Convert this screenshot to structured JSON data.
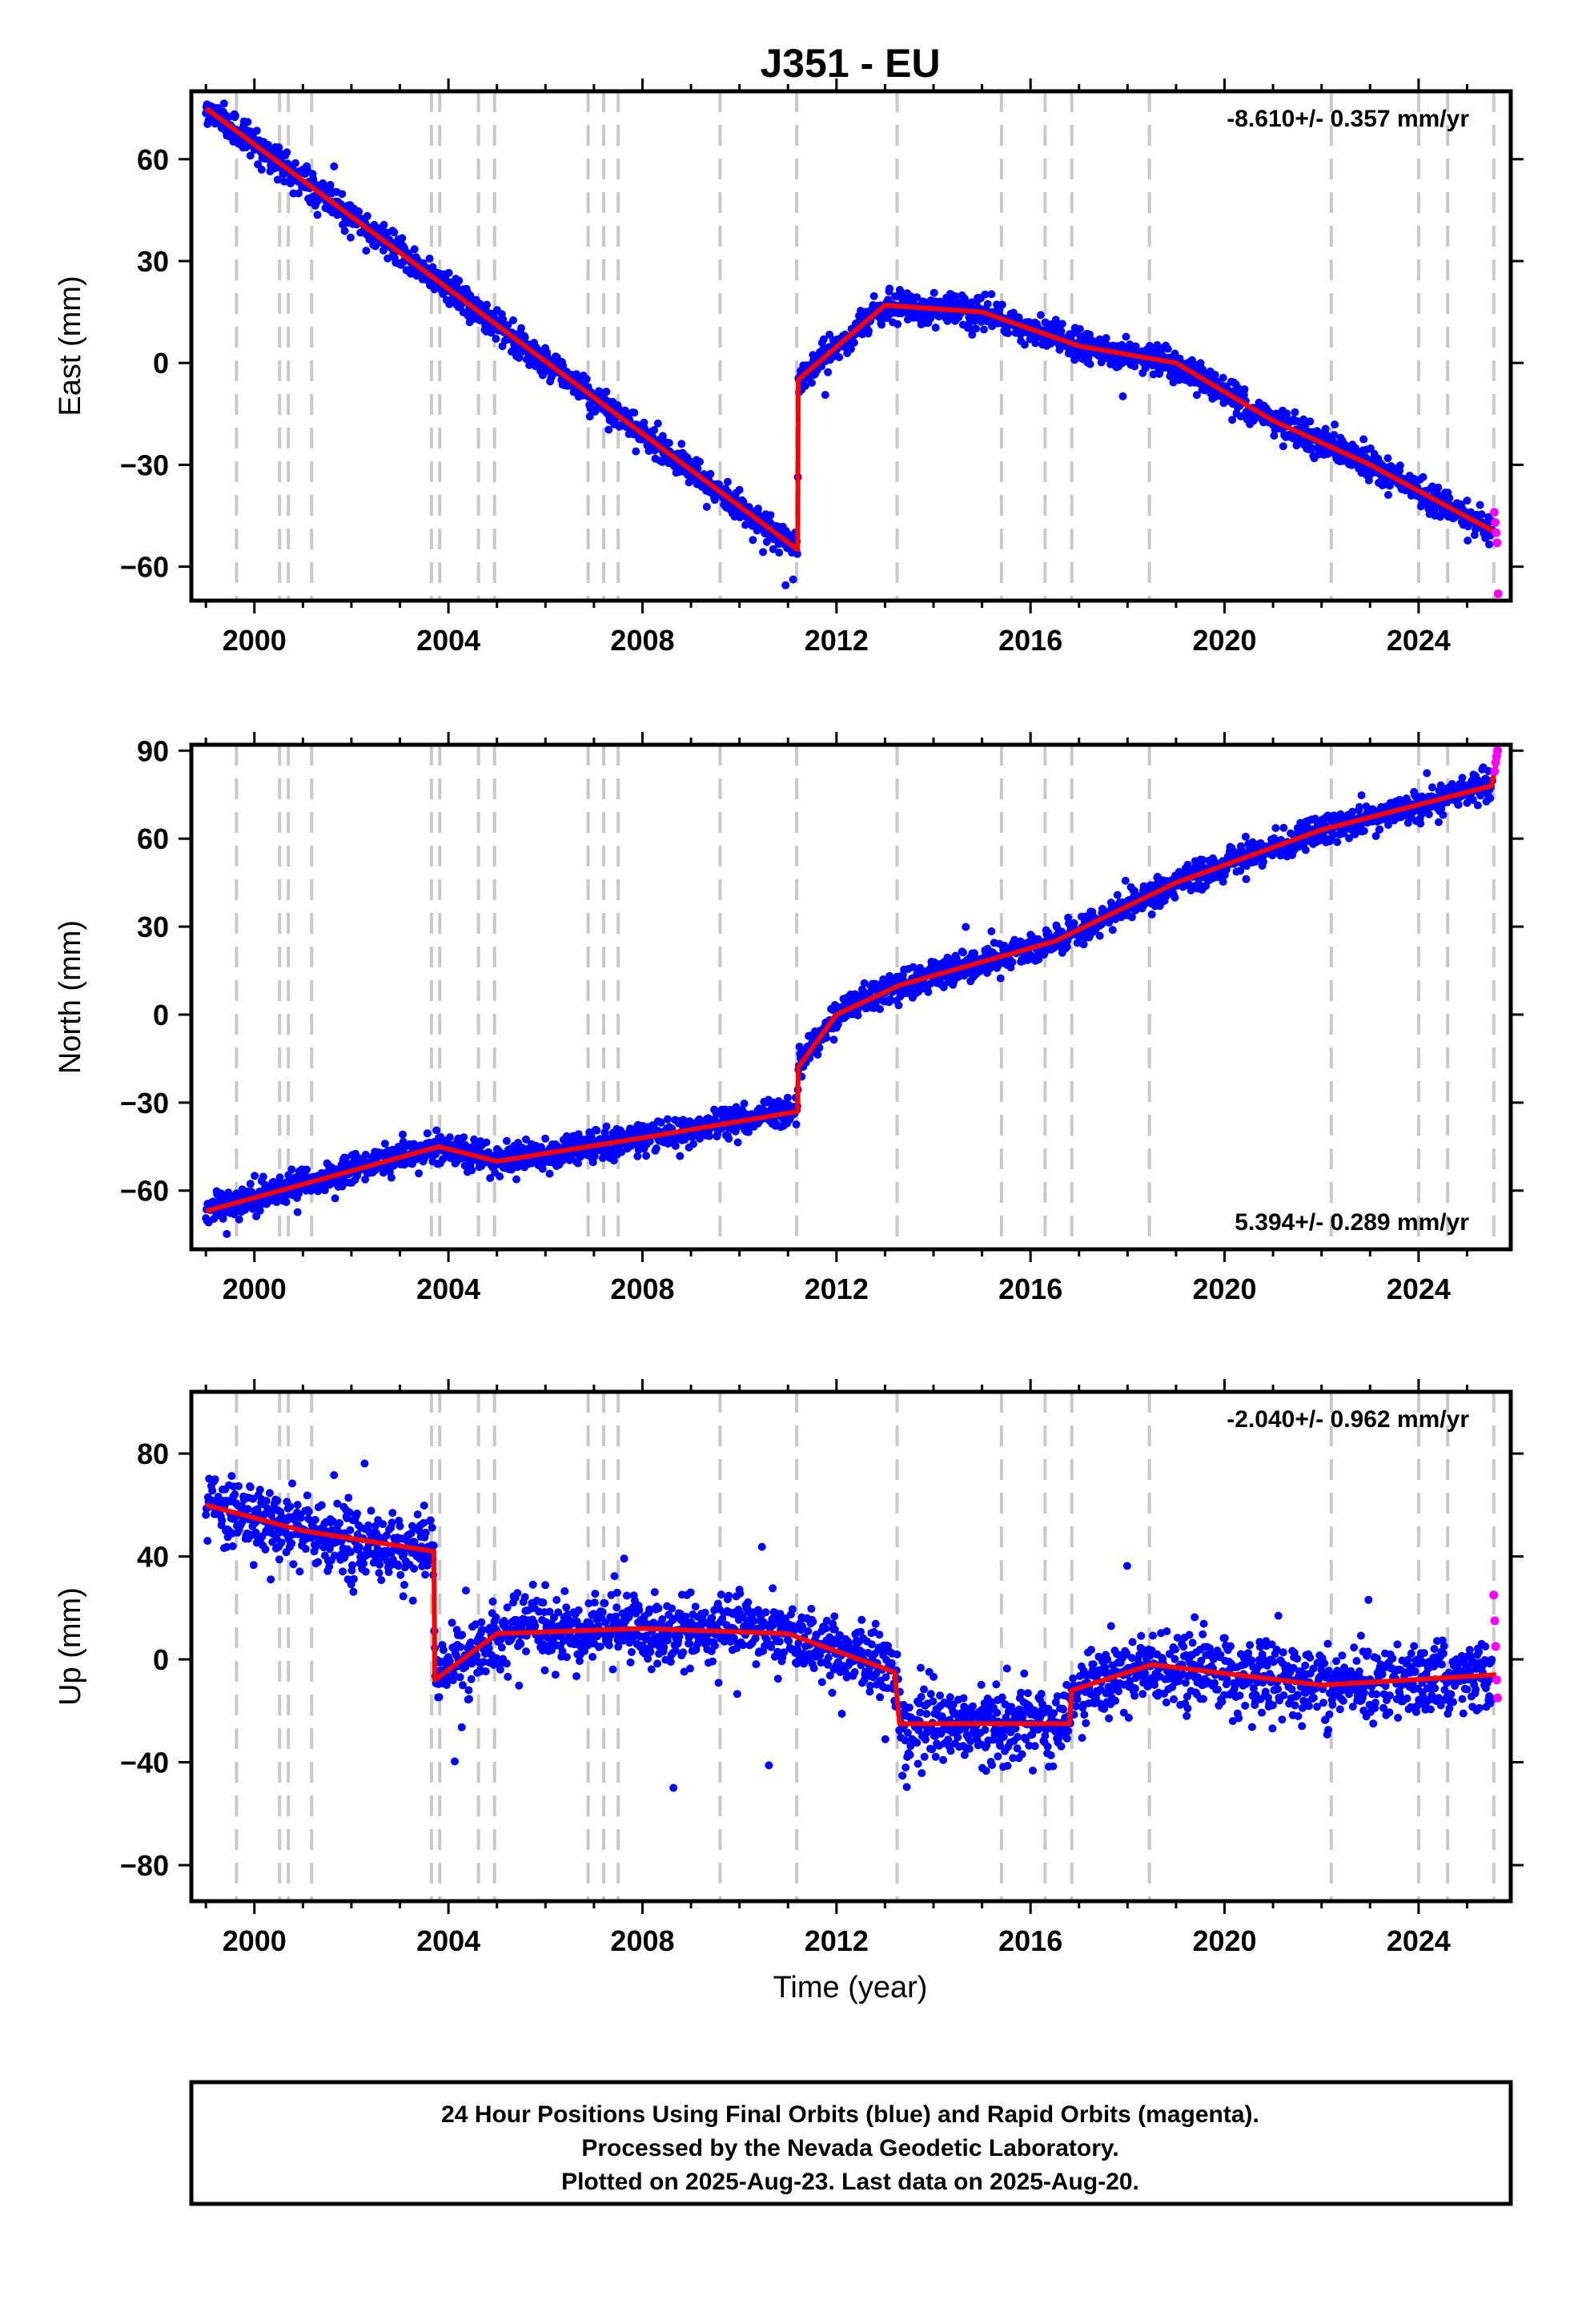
{
  "figure": {
    "title": "J351 - EU",
    "x_axis_label": "Time (year)",
    "footer": [
      "24 Hour Positions Using Final Orbits (blue) and Rapid Orbits (magenta).",
      "Processed by the Nevada Geodetic Laboratory.",
      "Plotted on 2025-Aug-23. Last data on 2025-Aug-20."
    ]
  },
  "colors": {
    "final_orbits": "#0000ff",
    "rapid_orbits": "#ff00ff",
    "model_line": "#ff0000",
    "event_lines": "#c8c8c8"
  },
  "chart_data": [
    {
      "type": "scatter",
      "name": "east",
      "ylabel": "East (mm)",
      "rate_label": "-8.610+/- 0.357 mm/yr",
      "rate_position": "top-right",
      "xlim": [
        1998.7,
        2025.9
      ],
      "ylim": [
        -70,
        80
      ],
      "x_ticks": [
        2000,
        2004,
        2008,
        2012,
        2016,
        2020,
        2024
      ],
      "y_ticks": [
        -60,
        -30,
        0,
        30,
        60
      ],
      "trend": [
        [
          1999.0,
          75
        ],
        [
          2003.7,
          25
        ],
        [
          2011.2,
          -55
        ],
        [
          2011.21,
          -5
        ],
        [
          2013.0,
          17
        ],
        [
          2015.0,
          15
        ],
        [
          2017.0,
          5
        ],
        [
          2019.0,
          0
        ],
        [
          2021.0,
          -17
        ],
        [
          2023.0,
          -30
        ],
        [
          2025.6,
          -50
        ]
      ],
      "noise_sd": 2.2,
      "rapid_orbits": [
        [
          2025.56,
          -44
        ],
        [
          2025.58,
          -47
        ],
        [
          2025.6,
          -50
        ],
        [
          2025.62,
          -53
        ],
        [
          2025.64,
          -68
        ]
      ]
    },
    {
      "type": "scatter",
      "name": "north",
      "ylabel": "North (mm)",
      "rate_label": "5.394+/- 0.289 mm/yr",
      "rate_position": "bottom-right",
      "xlim": [
        1998.7,
        2025.9
      ],
      "ylim": [
        -80,
        92
      ],
      "x_ticks": [
        2000,
        2004,
        2008,
        2012,
        2016,
        2020,
        2024
      ],
      "y_ticks": [
        -60,
        -30,
        0,
        30,
        60,
        90
      ],
      "trend": [
        [
          1999.0,
          -67
        ],
        [
          2003.8,
          -45
        ],
        [
          2005.0,
          -50
        ],
        [
          2008.0,
          -42
        ],
        [
          2011.2,
          -33
        ],
        [
          2011.21,
          -18
        ],
        [
          2012.0,
          0
        ],
        [
          2013.3,
          10
        ],
        [
          2016.5,
          25
        ],
        [
          2019.0,
          45
        ],
        [
          2022.0,
          63
        ],
        [
          2025.5,
          78
        ],
        [
          2025.62,
          87
        ]
      ],
      "noise_sd": 2.5,
      "rapid_orbits": [
        [
          2025.57,
          83
        ],
        [
          2025.59,
          86
        ],
        [
          2025.61,
          88
        ],
        [
          2025.63,
          90
        ]
      ]
    },
    {
      "type": "scatter",
      "name": "up",
      "ylabel": "Up (mm)",
      "rate_label": "-2.040+/- 0.962 mm/yr",
      "rate_position": "top-right",
      "xlim": [
        1998.7,
        2025.9
      ],
      "ylim": [
        -94,
        104
      ],
      "x_ticks": [
        2000,
        2004,
        2008,
        2012,
        2016,
        2020,
        2024
      ],
      "y_ticks": [
        -80,
        -40,
        0,
        40,
        80
      ],
      "trend": [
        [
          1999.0,
          60
        ],
        [
          2001.0,
          50
        ],
        [
          2003.7,
          42
        ],
        [
          2003.72,
          -8
        ],
        [
          2005.0,
          10
        ],
        [
          2008.0,
          12
        ],
        [
          2011.0,
          10
        ],
        [
          2013.2,
          -5
        ],
        [
          2013.3,
          -25
        ],
        [
          2016.8,
          -25
        ],
        [
          2016.85,
          -12
        ],
        [
          2018.5,
          -2
        ],
        [
          2022.0,
          -10
        ],
        [
          2025.6,
          -6
        ]
      ],
      "noise_sd": 7,
      "rapid_orbits": [
        [
          2025.55,
          25
        ],
        [
          2025.57,
          15
        ],
        [
          2025.59,
          5
        ],
        [
          2025.61,
          -8
        ],
        [
          2025.63,
          -15
        ]
      ]
    }
  ],
  "event_lines": [
    1999.63,
    2000.52,
    2000.7,
    2001.18,
    2003.65,
    2003.82,
    2004.62,
    2004.95,
    2006.88,
    2007.2,
    2007.5,
    2009.6,
    2011.18,
    2013.25,
    2015.4,
    2016.3,
    2016.85,
    2018.45,
    2022.2,
    2024.0,
    2024.6,
    2025.55
  ]
}
